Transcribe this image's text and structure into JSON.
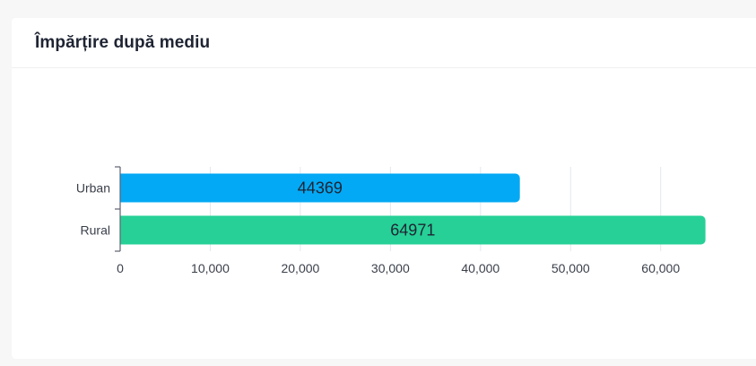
{
  "card": {
    "title": "Împărțire după mediu"
  },
  "chart_data": {
    "type": "bar",
    "orientation": "horizontal",
    "title": "Împărțire după mediu",
    "categories": [
      "Urban",
      "Rural"
    ],
    "values": [
      44369,
      64971
    ],
    "data_labels": [
      "44369",
      "64971"
    ],
    "colors": [
      "#03a9f4",
      "#26d096"
    ],
    "xlim": [
      0,
      65000
    ],
    "xticks": [
      0,
      10000,
      20000,
      30000,
      40000,
      50000,
      60000
    ],
    "xtick_labels": [
      "0",
      "10,000",
      "20,000",
      "30,000",
      "40,000",
      "50,000",
      "60,000"
    ],
    "grid": true
  }
}
